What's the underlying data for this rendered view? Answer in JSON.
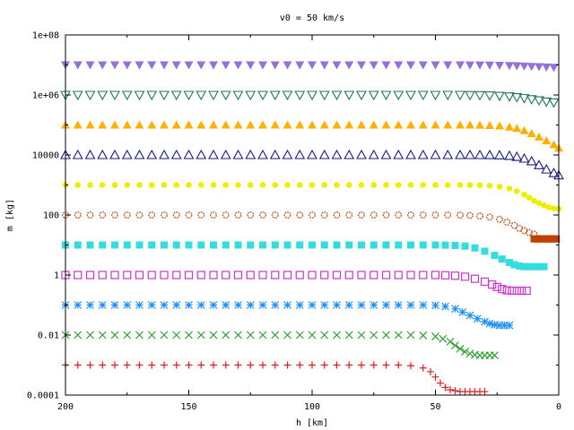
{
  "chart_data": {
    "type": "scatter",
    "title": "v0 = 50 km/s",
    "xlabel": "h [km]",
    "ylabel": "m [kg]",
    "xlim": [
      200,
      0
    ],
    "x_reversed": true,
    "ylim": [
      0.0001,
      100000000
    ],
    "y_scale": "log",
    "xticks": [
      200,
      150,
      100,
      50,
      0
    ],
    "yticks": [
      {
        "value": 0.0001,
        "label": "0.0001"
      },
      {
        "value": 0.01,
        "label": "0.01"
      },
      {
        "value": 1,
        "label": "1"
      },
      {
        "value": 100,
        "label": "100"
      },
      {
        "value": 10000,
        "label": "10000"
      },
      {
        "value": 1000000,
        "label": "1e+06"
      },
      {
        "value": 100000000,
        "label": "1e+08"
      }
    ],
    "grid": false,
    "legend": "none",
    "series": [
      {
        "marker": "plus",
        "color": "#e41a1c",
        "x": [
          200,
          195,
          190,
          185,
          180,
          175,
          170,
          165,
          160,
          155,
          150,
          145,
          140,
          135,
          130,
          125,
          120,
          115,
          110,
          105,
          100,
          95,
          90,
          85,
          80,
          75,
          70,
          65,
          60,
          55,
          52,
          50,
          48,
          46,
          44,
          42,
          40,
          38,
          36,
          34,
          32,
          30
        ],
        "y": [
          0.001,
          0.001,
          0.001,
          0.001,
          0.001,
          0.001,
          0.001,
          0.001,
          0.001,
          0.001,
          0.001,
          0.001,
          0.001,
          0.001,
          0.001,
          0.001,
          0.001,
          0.001,
          0.001,
          0.001,
          0.001,
          0.001,
          0.001,
          0.001,
          0.001,
          0.001,
          0.001,
          0.001,
          0.00095,
          0.0008,
          0.0006,
          0.0004,
          0.00025,
          0.00018,
          0.00015,
          0.00014,
          0.00013,
          0.00013,
          0.00013,
          0.00013,
          0.00013,
          0.00013
        ]
      },
      {
        "marker": "cross",
        "color": "#2ca02c",
        "x": [
          200,
          195,
          190,
          185,
          180,
          175,
          170,
          165,
          160,
          155,
          150,
          145,
          140,
          135,
          130,
          125,
          120,
          115,
          110,
          105,
          100,
          95,
          90,
          85,
          80,
          75,
          70,
          65,
          60,
          55,
          50,
          47,
          44,
          42,
          40,
          38,
          36,
          34,
          32,
          30,
          28,
          26
        ],
        "y": [
          0.01,
          0.01,
          0.01,
          0.01,
          0.01,
          0.01,
          0.01,
          0.01,
          0.01,
          0.01,
          0.01,
          0.01,
          0.01,
          0.01,
          0.01,
          0.01,
          0.01,
          0.01,
          0.01,
          0.01,
          0.01,
          0.01,
          0.01,
          0.01,
          0.01,
          0.01,
          0.01,
          0.01,
          0.01,
          0.0097,
          0.009,
          0.0075,
          0.006,
          0.0045,
          0.0035,
          0.0028,
          0.0024,
          0.0022,
          0.0021,
          0.0021,
          0.0021,
          0.0021
        ]
      },
      {
        "marker": "star",
        "color": "#1e90ff",
        "x": [
          200,
          195,
          190,
          185,
          180,
          175,
          170,
          165,
          160,
          155,
          150,
          145,
          140,
          135,
          130,
          125,
          120,
          115,
          110,
          105,
          100,
          95,
          90,
          85,
          80,
          75,
          70,
          65,
          60,
          55,
          50,
          46,
          42,
          39,
          36,
          33,
          30,
          28,
          26,
          24,
          22,
          20
        ],
        "y": [
          0.1,
          0.1,
          0.1,
          0.1,
          0.1,
          0.1,
          0.1,
          0.1,
          0.1,
          0.1,
          0.1,
          0.1,
          0.1,
          0.1,
          0.1,
          0.1,
          0.1,
          0.1,
          0.1,
          0.1,
          0.1,
          0.1,
          0.1,
          0.1,
          0.1,
          0.1,
          0.1,
          0.1,
          0.1,
          0.1,
          0.098,
          0.09,
          0.075,
          0.058,
          0.045,
          0.035,
          0.028,
          0.024,
          0.022,
          0.021,
          0.021,
          0.021
        ]
      },
      {
        "marker": "square-open",
        "color": "#cc33cc",
        "x": [
          200,
          195,
          190,
          185,
          180,
          175,
          170,
          165,
          160,
          155,
          150,
          145,
          140,
          135,
          130,
          125,
          120,
          115,
          110,
          105,
          100,
          95,
          90,
          85,
          80,
          75,
          70,
          65,
          60,
          55,
          50,
          46,
          42,
          38,
          34,
          30,
          27,
          25,
          23,
          21,
          19,
          17,
          15,
          13
        ],
        "y": [
          1,
          1,
          1,
          1,
          1,
          1,
          1,
          1,
          1,
          1,
          1,
          1,
          1,
          1,
          1,
          1,
          1,
          1,
          1,
          1,
          1,
          1,
          1,
          1,
          1,
          1,
          1,
          1,
          1,
          1,
          1,
          0.98,
          0.95,
          0.88,
          0.75,
          0.6,
          0.48,
          0.4,
          0.34,
          0.31,
          0.3,
          0.3,
          0.3,
          0.3
        ]
      },
      {
        "marker": "square",
        "color": "#33dddd",
        "x": [
          200,
          195,
          190,
          185,
          180,
          175,
          170,
          165,
          160,
          155,
          150,
          145,
          140,
          135,
          130,
          125,
          120,
          115,
          110,
          105,
          100,
          95,
          90,
          85,
          80,
          75,
          70,
          65,
          60,
          55,
          50,
          46,
          42,
          38,
          34,
          30,
          26,
          23,
          20,
          18,
          16,
          14,
          12,
          10,
          8,
          6
        ],
        "y": [
          10,
          10,
          10,
          10,
          10,
          10,
          10,
          10,
          10,
          10,
          10,
          10,
          10,
          10,
          10,
          10,
          10,
          10,
          10,
          10,
          10,
          10,
          10,
          10,
          10,
          10,
          10,
          10,
          10,
          10,
          10,
          9.9,
          9.7,
          9.2,
          8,
          6.2,
          4.5,
          3.4,
          2.6,
          2.2,
          2,
          1.9,
          1.9,
          1.9,
          1.9,
          1.9
        ]
      },
      {
        "marker": "circle-star",
        "color": "#c0622c",
        "x": [
          200,
          195,
          190,
          185,
          180,
          175,
          170,
          165,
          160,
          155,
          150,
          145,
          140,
          135,
          130,
          125,
          120,
          115,
          110,
          105,
          100,
          95,
          90,
          85,
          80,
          75,
          70,
          65,
          60,
          55,
          50,
          45,
          40,
          36,
          32,
          28,
          24,
          21,
          18,
          16,
          14,
          12,
          10
        ],
        "y": [
          100,
          100,
          100,
          100,
          100,
          100,
          100,
          100,
          100,
          100,
          100,
          100,
          100,
          100,
          100,
          100,
          100,
          100,
          100,
          100,
          100,
          100,
          100,
          100,
          100,
          100,
          100,
          100,
          100,
          100,
          100,
          100,
          99,
          97,
          93,
          85,
          72,
          58,
          45,
          36,
          30,
          26,
          23
        ]
      },
      {
        "marker": "square-dark",
        "color": "#c04000",
        "x": [
          10,
          9,
          8,
          7,
          6,
          5,
          4,
          3,
          2,
          1
        ],
        "y": [
          16,
          16,
          16,
          16,
          16,
          16,
          16,
          16,
          16,
          16
        ]
      },
      {
        "marker": "circle",
        "color": "#eeee00",
        "x": [
          200,
          195,
          190,
          185,
          180,
          175,
          170,
          165,
          160,
          155,
          150,
          145,
          140,
          135,
          130,
          125,
          120,
          115,
          110,
          105,
          100,
          95,
          90,
          85,
          80,
          75,
          70,
          65,
          60,
          55,
          50,
          45,
          40,
          36,
          32,
          28,
          24,
          20,
          17,
          14,
          12,
          10,
          8,
          6,
          4,
          2,
          0
        ],
        "y": [
          1000,
          1000,
          1000,
          1000,
          1000,
          1000,
          1000,
          1000,
          1000,
          1000,
          1000,
          1000,
          1000,
          1000,
          1000,
          1000,
          1000,
          1000,
          1000,
          1000,
          1000,
          1000,
          1000,
          1000,
          1000,
          1000,
          1000,
          1000,
          1000,
          1000,
          1000,
          1000,
          1000,
          998,
          985,
          950,
          880,
          760,
          620,
          480,
          380,
          300,
          250,
          210,
          180,
          165,
          160
        ]
      },
      {
        "marker": "triangle-up-open",
        "color": "#1a1a80",
        "x": [
          200,
          195,
          190,
          185,
          180,
          175,
          170,
          165,
          160,
          155,
          150,
          145,
          140,
          135,
          130,
          125,
          120,
          115,
          110,
          105,
          100,
          95,
          90,
          85,
          80,
          75,
          70,
          65,
          60,
          55,
          50,
          45,
          40,
          36,
          32,
          28,
          24,
          20,
          17,
          14,
          11,
          8,
          5,
          2,
          0
        ],
        "y": [
          10000,
          10000,
          10000,
          10000,
          10000,
          10000,
          10000,
          10000,
          10000,
          10000,
          10000,
          10000,
          10000,
          10000,
          10000,
          10000,
          10000,
          10000,
          10000,
          10000,
          10000,
          10000,
          10000,
          10000,
          10000,
          10000,
          10000,
          10000,
          10000,
          10000,
          10000,
          10000,
          10000,
          10000,
          10000,
          9950,
          9800,
          9400,
          8700,
          7600,
          6200,
          4600,
          3300,
          2500,
          2100
        ]
      },
      {
        "marker": "triangle-up",
        "color": "#ffb000",
        "x": [
          200,
          195,
          190,
          185,
          180,
          175,
          170,
          165,
          160,
          155,
          150,
          145,
          140,
          135,
          130,
          125,
          120,
          115,
          110,
          105,
          100,
          95,
          90,
          85,
          80,
          75,
          70,
          65,
          60,
          55,
          50,
          45,
          40,
          36,
          32,
          28,
          24,
          20,
          17,
          14,
          11,
          8,
          5,
          2,
          0
        ],
        "y": [
          100000,
          100000,
          100000,
          100000,
          100000,
          100000,
          100000,
          100000,
          100000,
          100000,
          100000,
          100000,
          100000,
          100000,
          100000,
          100000,
          100000,
          100000,
          100000,
          100000,
          100000,
          100000,
          100000,
          100000,
          100000,
          100000,
          100000,
          100000,
          100000,
          100000,
          100000,
          100000,
          100000,
          100000,
          99000,
          97000,
          93000,
          86000,
          77000,
          65000,
          52000,
          40000,
          30000,
          22000,
          17000
        ]
      },
      {
        "marker": "triangle-down-open",
        "color": "#1e7a50",
        "x": [
          200,
          195,
          190,
          185,
          180,
          175,
          170,
          165,
          160,
          155,
          150,
          145,
          140,
          135,
          130,
          125,
          120,
          115,
          110,
          105,
          100,
          95,
          90,
          85,
          80,
          75,
          70,
          65,
          60,
          55,
          50,
          45,
          40,
          36,
          32,
          28,
          24,
          20,
          17,
          14,
          11,
          8,
          5,
          2
        ],
        "y": [
          1000000,
          1000000,
          1000000,
          1000000,
          1000000,
          1000000,
          1000000,
          1000000,
          1000000,
          1000000,
          1000000,
          1000000,
          1000000,
          1000000,
          1000000,
          1000000,
          1000000,
          1000000,
          1000000,
          1000000,
          1000000,
          1000000,
          1000000,
          1000000,
          1000000,
          1000000,
          1000000,
          1000000,
          1000000,
          1000000,
          1000000,
          1000000,
          1000000,
          990000,
          980000,
          960000,
          930000,
          890000,
          840000,
          780000,
          720000,
          660000,
          600000,
          560000
        ]
      },
      {
        "marker": "triangle-down",
        "color": "#9370db",
        "x": [
          200,
          195,
          190,
          185,
          180,
          175,
          170,
          165,
          160,
          155,
          150,
          145,
          140,
          135,
          130,
          125,
          120,
          115,
          110,
          105,
          100,
          95,
          90,
          85,
          80,
          75,
          70,
          65,
          60,
          55,
          50,
          45,
          40,
          36,
          32,
          28,
          24,
          20,
          17,
          14,
          11,
          8,
          5,
          2
        ],
        "y": [
          10000000,
          10000000,
          10000000,
          10000000,
          10000000,
          10000000,
          10000000,
          10000000,
          10000000,
          10000000,
          10000000,
          10000000,
          10000000,
          10000000,
          10000000,
          10000000,
          10000000,
          10000000,
          10000000,
          10000000,
          10000000,
          10000000,
          10000000,
          10000000,
          10000000,
          10000000,
          10000000,
          10000000,
          10000000,
          10000000,
          10000000,
          10000000,
          10000000,
          9950000,
          9900000,
          9800000,
          9650000,
          9500000,
          9300000,
          9100000,
          8900000,
          8700000,
          8500000,
          8300000
        ]
      }
    ]
  }
}
